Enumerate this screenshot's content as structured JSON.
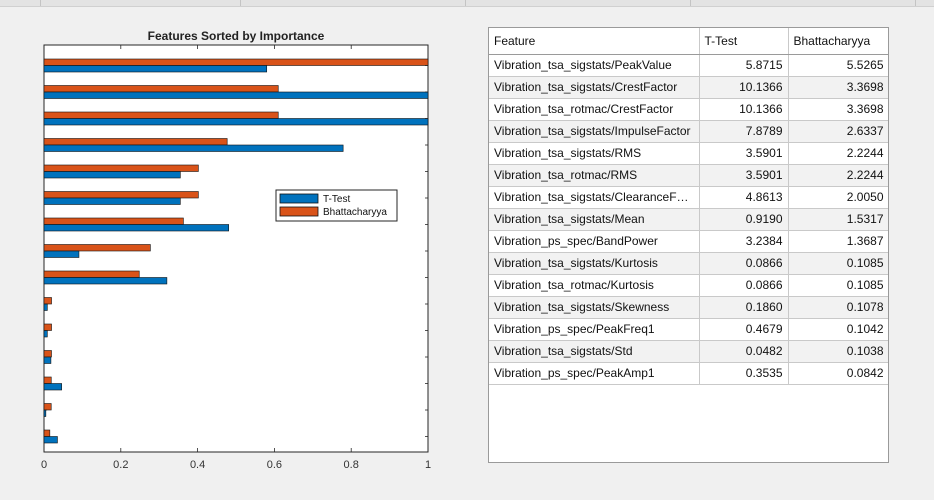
{
  "colors": {
    "ttest": "#0072BD",
    "bhattacharyya": "#D95319",
    "axes": "#262626"
  },
  "chart_data": {
    "type": "bar",
    "orientation": "horizontal",
    "title": "Features Sorted by Importance",
    "xlim": [
      0,
      1
    ],
    "xticks": [
      "0",
      "0.2",
      "0.4",
      "0.6",
      "0.8",
      "1"
    ],
    "legend": {
      "placement": "center-right",
      "entries": [
        "T-Test",
        "Bhattacharyya"
      ]
    },
    "grid": false,
    "series": [
      {
        "name": "T-Test",
        "values": [
          0.58,
          1.0,
          1.0,
          0.779,
          0.355,
          0.355,
          0.481,
          0.091,
          0.32,
          0.0086,
          0.0086,
          0.018,
          0.046,
          0.0048,
          0.035
        ]
      },
      {
        "name": "Bhattacharyya",
        "values": [
          1.0,
          0.61,
          0.61,
          0.477,
          0.402,
          0.402,
          0.363,
          0.277,
          0.248,
          0.0196,
          0.0196,
          0.0195,
          0.0189,
          0.0188,
          0.0152
        ]
      }
    ]
  },
  "table": {
    "columns": [
      "Feature",
      "T-Test",
      "Bhattacharyya"
    ],
    "rows": [
      [
        "Vibration_tsa_sigstats/PeakValue",
        "5.8715",
        "5.5265"
      ],
      [
        "Vibration_tsa_sigstats/CrestFactor",
        "10.1366",
        "3.3698"
      ],
      [
        "Vibration_tsa_rotmac/CrestFactor",
        "10.1366",
        "3.3698"
      ],
      [
        "Vibration_tsa_sigstats/ImpulseFactor",
        "7.8789",
        "2.6337"
      ],
      [
        "Vibration_tsa_sigstats/RMS",
        "3.5901",
        "2.2244"
      ],
      [
        "Vibration_tsa_rotmac/RMS",
        "3.5901",
        "2.2244"
      ],
      [
        "Vibration_tsa_sigstats/ClearanceFa…",
        "4.8613",
        "2.0050"
      ],
      [
        "Vibration_tsa_sigstats/Mean",
        "0.9190",
        "1.5317"
      ],
      [
        "Vibration_ps_spec/BandPower",
        "3.2384",
        "1.3687"
      ],
      [
        "Vibration_tsa_sigstats/Kurtosis",
        "0.0866",
        "0.1085"
      ],
      [
        "Vibration_tsa_rotmac/Kurtosis",
        "0.0866",
        "0.1085"
      ],
      [
        "Vibration_tsa_sigstats/Skewness",
        "0.1860",
        "0.1078"
      ],
      [
        "Vibration_ps_spec/PeakFreq1",
        "0.4679",
        "0.1042"
      ],
      [
        "Vibration_tsa_sigstats/Std",
        "0.0482",
        "0.1038"
      ],
      [
        "Vibration_ps_spec/PeakAmp1",
        "0.3535",
        "0.0842"
      ]
    ]
  }
}
